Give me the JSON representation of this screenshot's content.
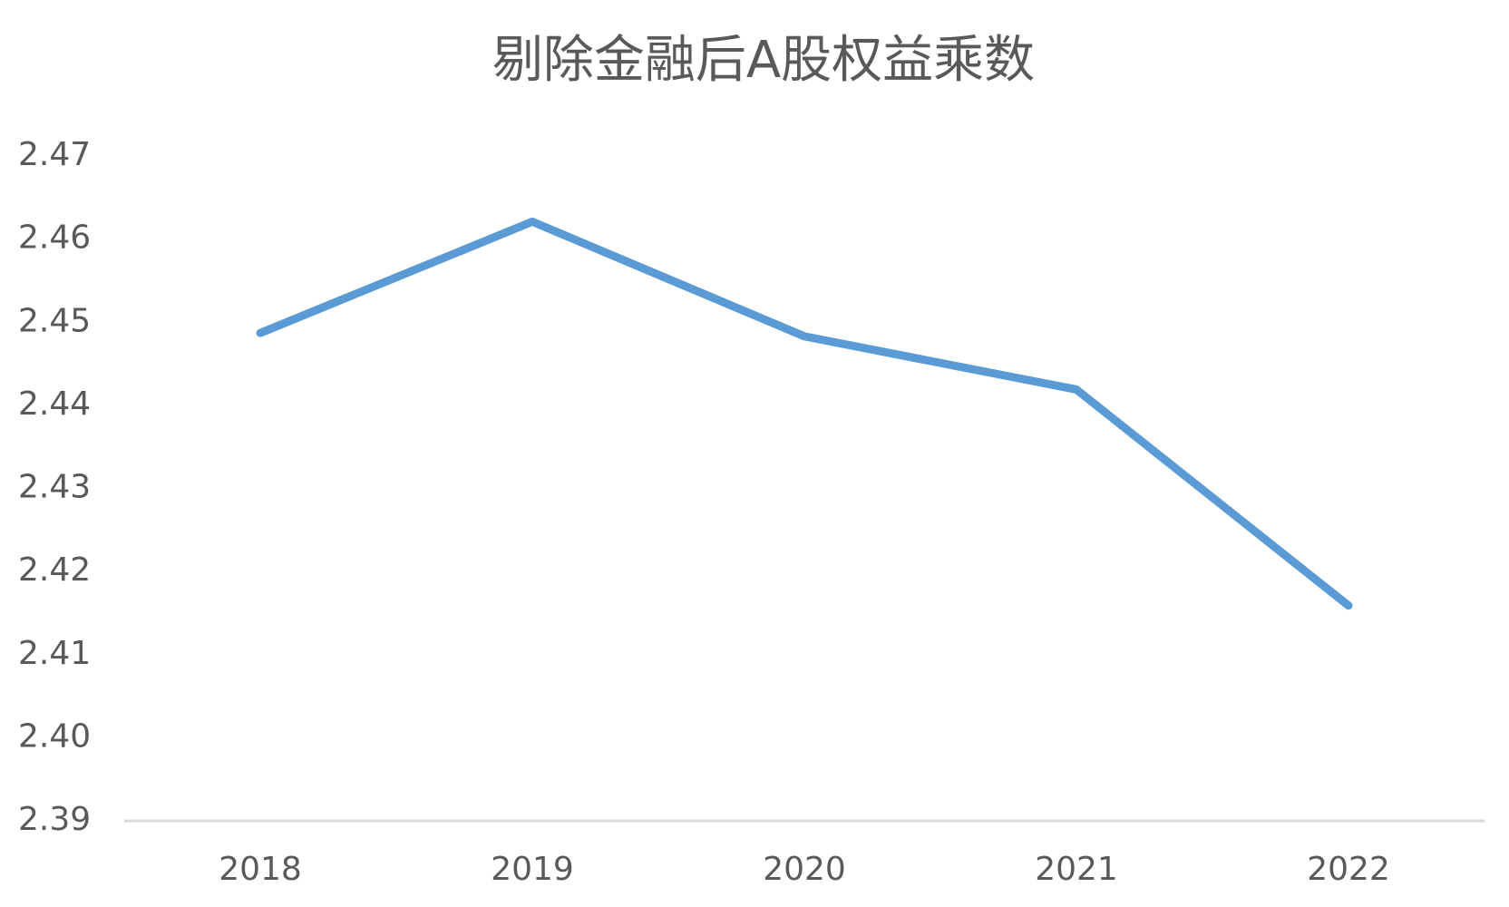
{
  "chart_data": {
    "type": "line",
    "title": "剔除金融后A股权益乘数",
    "categories": [
      "2018",
      "2019",
      "2020",
      "2021",
      "2022"
    ],
    "series": [
      {
        "name": "剔除金融后A股权益乘数",
        "color": "#5b9bd5",
        "values": [
          2.4487,
          2.4621,
          2.4483,
          2.4419,
          2.4159
        ]
      }
    ],
    "ylim": [
      2.39,
      2.47
    ],
    "yticks": [
      2.39,
      {
        "value": 2.4,
        "label": "2.40"
      },
      2.41,
      2.42,
      2.43,
      2.44,
      2.45,
      2.46,
      2.47
    ],
    "grid": false
  }
}
